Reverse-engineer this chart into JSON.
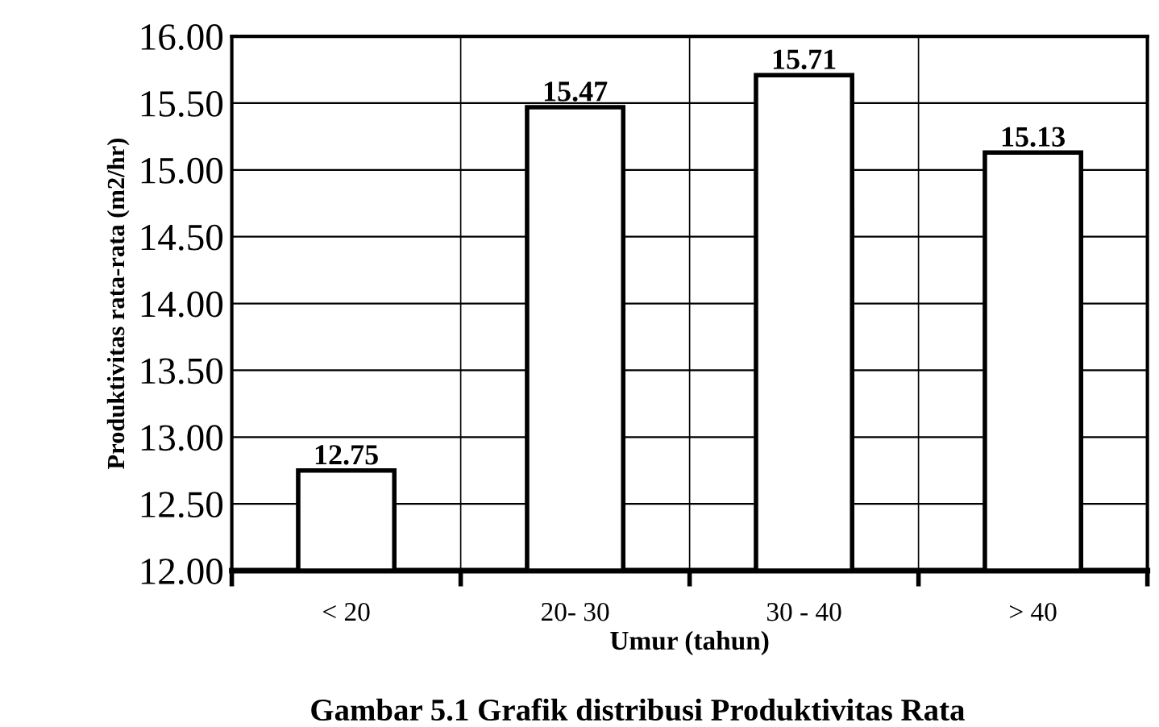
{
  "chart_data": {
    "type": "bar",
    "xlabel": "Umur (tahun)",
    "ylabel": "Produktivitas rata-rata (m2/hr)",
    "categories": [
      "< 20",
      "20- 30",
      "30 - 40",
      "> 40"
    ],
    "values": [
      12.75,
      15.47,
      15.71,
      15.13
    ],
    "color": "#ffffff",
    "ylim": [
      12.0,
      16.0
    ],
    "yticks": [
      {
        "value": 12.0,
        "label": "12.00"
      },
      {
        "value": 12.5,
        "label": "12.50"
      },
      {
        "value": 13.0,
        "label": "13.00"
      },
      {
        "value": 13.5,
        "label": "13.50"
      },
      {
        "value": 14.0,
        "label": "14.00"
      },
      {
        "value": 14.5,
        "label": "14.50"
      },
      {
        "value": 15.0,
        "label": "15.00"
      },
      {
        "value": 15.5,
        "label": "15.50"
      },
      {
        "value": 16.0,
        "label": "16.00"
      }
    ],
    "grid": true,
    "data_labels": true,
    "annotations": [
      "Gambar 5.1 Grafik distribusi Produktivitas Rata"
    ]
  }
}
